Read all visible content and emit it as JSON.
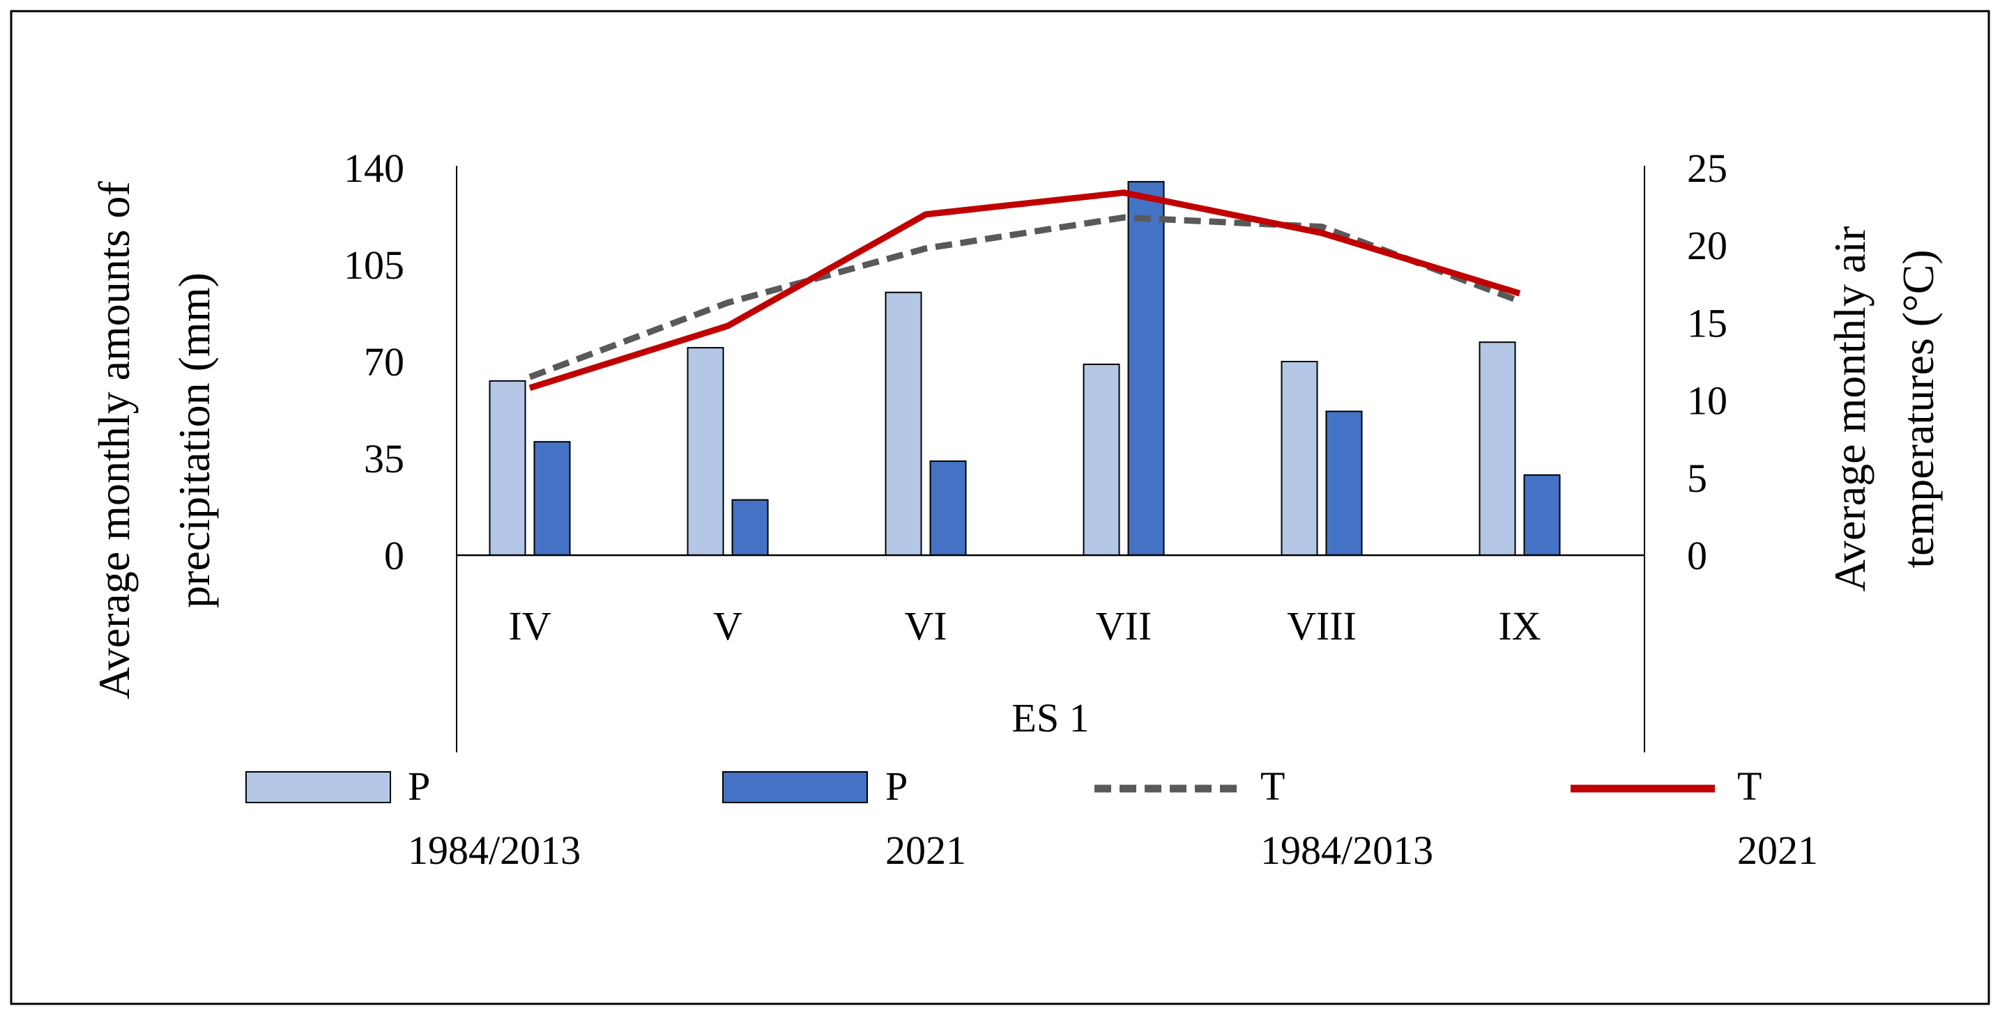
{
  "chart_data": {
    "type": "bar",
    "xlabel": "ES 1",
    "categories": [
      "IV",
      "V",
      "VI",
      "VII",
      "VIII",
      "IX"
    ],
    "y_left": {
      "label_lines": [
        "Average monthly amounts of",
        "precipitation (mm)"
      ],
      "ylim": [
        0,
        140
      ],
      "ticks": [
        0,
        35,
        70,
        105,
        140
      ]
    },
    "y_right": {
      "label_lines": [
        "Average monthly air",
        "temperatures (°C)"
      ],
      "ylim": [
        0,
        25
      ],
      "ticks": [
        0,
        5,
        10,
        15,
        20,
        25
      ]
    },
    "bar_series": [
      {
        "name": "P 1984/2013",
        "legend_lines": [
          "P",
          "1984/2013"
        ],
        "color": "#b4c7e7",
        "axis": "left",
        "values": [
          63,
          75,
          95,
          69,
          70,
          77
        ]
      },
      {
        "name": "P 2021",
        "legend_lines": [
          "P",
          "2021"
        ],
        "color": "#4472c4",
        "axis": "left",
        "values": [
          41,
          20,
          34,
          135,
          52,
          29
        ]
      }
    ],
    "line_series": [
      {
        "name": "T 1984/2013",
        "legend_lines": [
          "T",
          "1984/2013"
        ],
        "color": "#595959",
        "dash": true,
        "axis": "right",
        "values": [
          11.5,
          16.3,
          19.8,
          21.8,
          21.2,
          16.4
        ]
      },
      {
        "name": "T 2021",
        "legend_lines": [
          "T",
          "2021"
        ],
        "color": "#c00000",
        "dash": false,
        "axis": "right",
        "values": [
          10.8,
          14.8,
          22.0,
          23.4,
          20.8,
          16.9
        ]
      }
    ]
  }
}
